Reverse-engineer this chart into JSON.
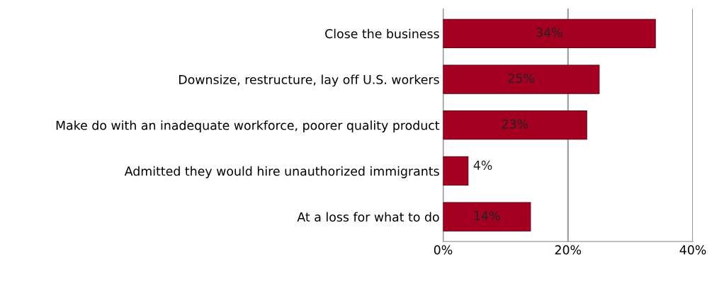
{
  "chart_data": {
    "type": "bar",
    "orientation": "horizontal",
    "categories": [
      "Close the business",
      "Downsize, restructure, lay off U.S. workers",
      "Make do with an inadequate workforce, poorer quality product",
      "Admitted they would hire unauthorized immigrants",
      "At a loss for what to do"
    ],
    "values": [
      34,
      25,
      23,
      4,
      14
    ],
    "value_labels": [
      "34%",
      "25%",
      "23%",
      "4%",
      "14%"
    ],
    "color": "#a50021",
    "xlim": [
      0,
      40
    ],
    "xticks": [
      {
        "value": 0,
        "label": "0%"
      },
      {
        "value": 20,
        "label": "20%"
      },
      {
        "value": 40,
        "label": "40%"
      }
    ],
    "grid": "x"
  }
}
